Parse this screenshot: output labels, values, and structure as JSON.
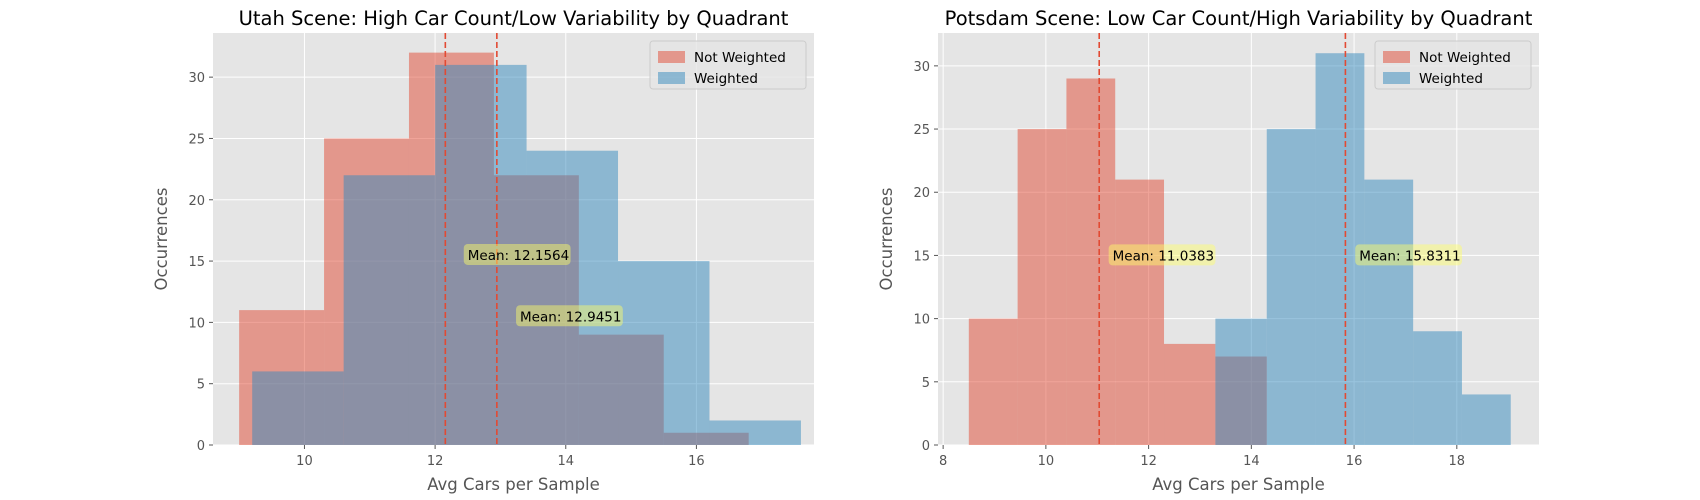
{
  "chart_data": [
    {
      "type": "histogram",
      "title": "Utah Scene: High Car Count/Low Variability by Quadrant",
      "xlabel": "Avg Cars per Sample",
      "ylabel": "Occurrences",
      "xlim": [
        8.6,
        17.8
      ],
      "ylim": [
        0,
        33.6
      ],
      "xticks": [
        10,
        12,
        14,
        16
      ],
      "yticks": [
        0,
        5,
        10,
        15,
        20,
        25,
        30
      ],
      "grid": true,
      "legend": "top-right",
      "series": [
        {
          "name": "Not Weighted",
          "color": "#E24A33",
          "bins": [
            {
              "x0": 9.0,
              "x1": 10.3,
              "value": 11
            },
            {
              "x0": 10.3,
              "x1": 11.6,
              "value": 25
            },
            {
              "x0": 11.6,
              "x1": 12.9,
              "value": 32
            },
            {
              "x0": 12.9,
              "x1": 14.2,
              "value": 22
            },
            {
              "x0": 14.2,
              "x1": 15.5,
              "value": 9
            },
            {
              "x0": 15.5,
              "x1": 16.8,
              "value": 1
            }
          ],
          "mean": 12.1564,
          "mean_label": "Mean: 12.1564"
        },
        {
          "name": "Weighted",
          "color": "#348ABD",
          "bins": [
            {
              "x0": 9.2,
              "x1": 10.6,
              "value": 6
            },
            {
              "x0": 10.6,
              "x1": 12.0,
              "value": 22
            },
            {
              "x0": 12.0,
              "x1": 13.4,
              "value": 31
            },
            {
              "x0": 13.4,
              "x1": 14.8,
              "value": 24
            },
            {
              "x0": 14.8,
              "x1": 16.2,
              "value": 15
            },
            {
              "x0": 16.2,
              "x1": 17.6,
              "value": 2
            }
          ],
          "mean": 12.9451,
          "mean_label": "Mean: 12.9451"
        }
      ],
      "annotations": [
        {
          "text": "Mean: 12.1564",
          "x": 12.5,
          "y": 15.5
        },
        {
          "text": "Mean: 12.9451",
          "x": 13.3,
          "y": 10.5
        }
      ]
    },
    {
      "type": "histogram",
      "title": "Potsdam Scene: Low Car Count/High Variability by Quadrant",
      "xlabel": "Avg Cars per Sample",
      "ylabel": "Occurrences",
      "xlim": [
        7.9,
        19.6
      ],
      "ylim": [
        0,
        32.6
      ],
      "xticks": [
        8,
        10,
        12,
        14,
        16,
        18
      ],
      "yticks": [
        0,
        5,
        10,
        15,
        20,
        25,
        30
      ],
      "grid": true,
      "legend": "top-right",
      "series": [
        {
          "name": "Not Weighted",
          "color": "#E24A33",
          "bins": [
            {
              "x0": 8.5,
              "x1": 9.45,
              "value": 10
            },
            {
              "x0": 9.45,
              "x1": 10.4,
              "value": 25
            },
            {
              "x0": 10.4,
              "x1": 11.35,
              "value": 29
            },
            {
              "x0": 11.35,
              "x1": 12.3,
              "value": 21
            },
            {
              "x0": 12.3,
              "x1": 13.3,
              "value": 8
            },
            {
              "x0": 13.3,
              "x1": 14.3,
              "value": 7
            }
          ],
          "mean": 11.0383,
          "mean_label": "Mean: 11.0383"
        },
        {
          "name": "Weighted",
          "color": "#348ABD",
          "bins": [
            {
              "x0": 13.3,
              "x1": 14.3,
              "value": 10
            },
            {
              "x0": 14.3,
              "x1": 15.25,
              "value": 25
            },
            {
              "x0": 15.25,
              "x1": 16.2,
              "value": 31
            },
            {
              "x0": 16.2,
              "x1": 17.15,
              "value": 21
            },
            {
              "x0": 17.15,
              "x1": 18.1,
              "value": 9
            },
            {
              "x0": 18.1,
              "x1": 19.05,
              "value": 4
            }
          ],
          "mean": 15.8311,
          "mean_label": "Mean: 15.8311"
        }
      ],
      "annotations": [
        {
          "text": "Mean: 11.0383",
          "x": 11.3,
          "y": 15.0
        },
        {
          "text": "Mean: 15.8311",
          "x": 16.1,
          "y": 15.0
        }
      ]
    }
  ]
}
